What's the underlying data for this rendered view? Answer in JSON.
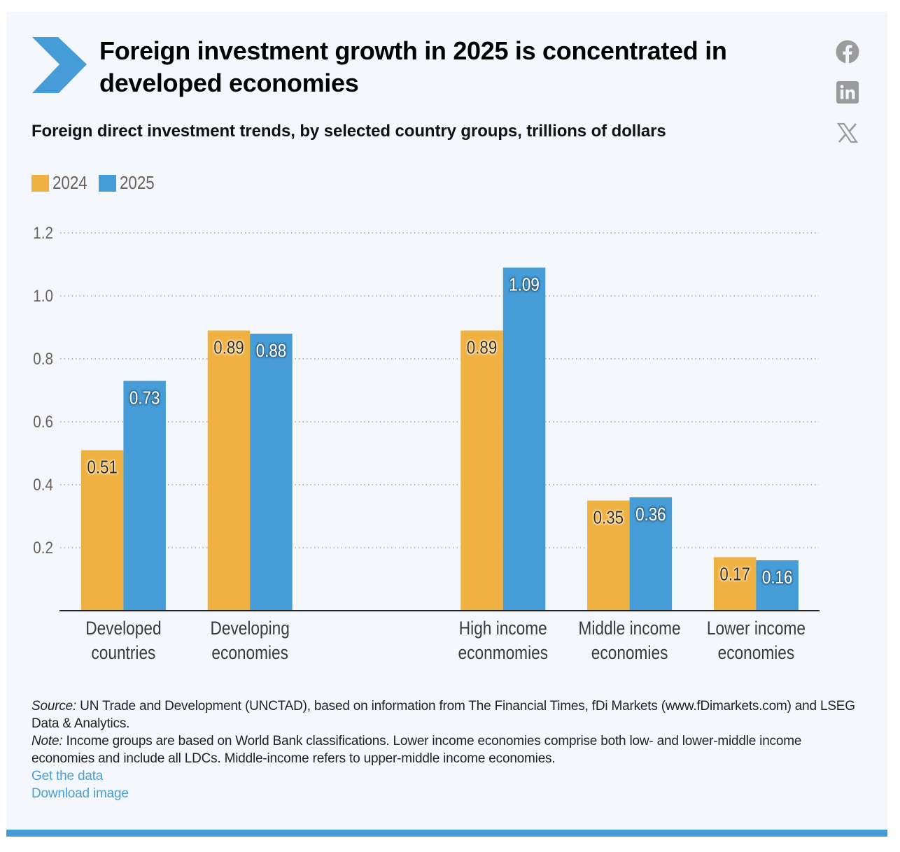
{
  "header": {
    "title": "Foreign investment growth in 2025 is concentrated in developed economies",
    "subtitle": "Foreign direct investment trends, by selected country groups, trillions of dollars"
  },
  "social": [
    {
      "name": "facebook-icon",
      "label": "Share on Facebook"
    },
    {
      "name": "linkedin-icon",
      "label": "Share on LinkedIn"
    },
    {
      "name": "x-icon",
      "label": "Share on X"
    }
  ],
  "colors": {
    "accent": "#459cd6",
    "series_2024": "#f0b143",
    "series_2025": "#459cd6",
    "background": "#f4f8fc",
    "icon_gray": "#9b9b9b",
    "link": "#4a9fd8"
  },
  "legend": {
    "items": [
      {
        "label": "2024",
        "color": "#f0b143"
      },
      {
        "label": "2025",
        "color": "#459cd6"
      }
    ]
  },
  "chart_data": {
    "type": "bar",
    "title": "Foreign investment growth in 2025 is concentrated in developed economies",
    "subtitle": "Foreign direct investment trends, by selected country groups, trillions of dollars",
    "xlabel": "",
    "ylabel": "",
    "ylim": [
      0,
      1.2
    ],
    "yticks": [
      0.2,
      0.4,
      0.6,
      0.8,
      1.0,
      1.2
    ],
    "ytick_labels": [
      "0.2",
      "0.4",
      "0.6",
      "0.8",
      "1.0",
      "1.2"
    ],
    "grid": "horizontal-dotted",
    "legend_position": "top-left",
    "categories": [
      [
        "Developed",
        "countries"
      ],
      [
        "Developing",
        "economies"
      ],
      null,
      [
        "High income",
        "econmomies"
      ],
      [
        "Middle income",
        "economies"
      ],
      [
        "Lower income",
        "economies"
      ]
    ],
    "series": [
      {
        "name": "2024",
        "values": [
          0.51,
          0.89,
          null,
          0.89,
          0.35,
          0.17
        ],
        "labels": [
          "0.51",
          "0.89",
          null,
          "0.89",
          "0.35",
          "0.17"
        ]
      },
      {
        "name": "2025",
        "values": [
          0.73,
          0.88,
          null,
          1.09,
          0.36,
          0.16
        ],
        "labels": [
          "0.73",
          "0.88",
          null,
          "1.09",
          "0.36",
          "0.16"
        ]
      }
    ]
  },
  "footer": {
    "source_label": "Source:",
    "source_text": " UN Trade and Development (UNCTAD), based on information from The Financial Times, fDi Markets (www.fDimarkets.com) and LSEG Data & Analytics.",
    "note_label": "Note:",
    "note_text": " Income groups are based on World Bank classifications. Lower income economies comprise both low- and lower-middle income economies and include all LDCs. Middle-income refers to upper-middle income economies.",
    "links": {
      "get_data": "Get the data",
      "download_image": "Download image"
    }
  }
}
